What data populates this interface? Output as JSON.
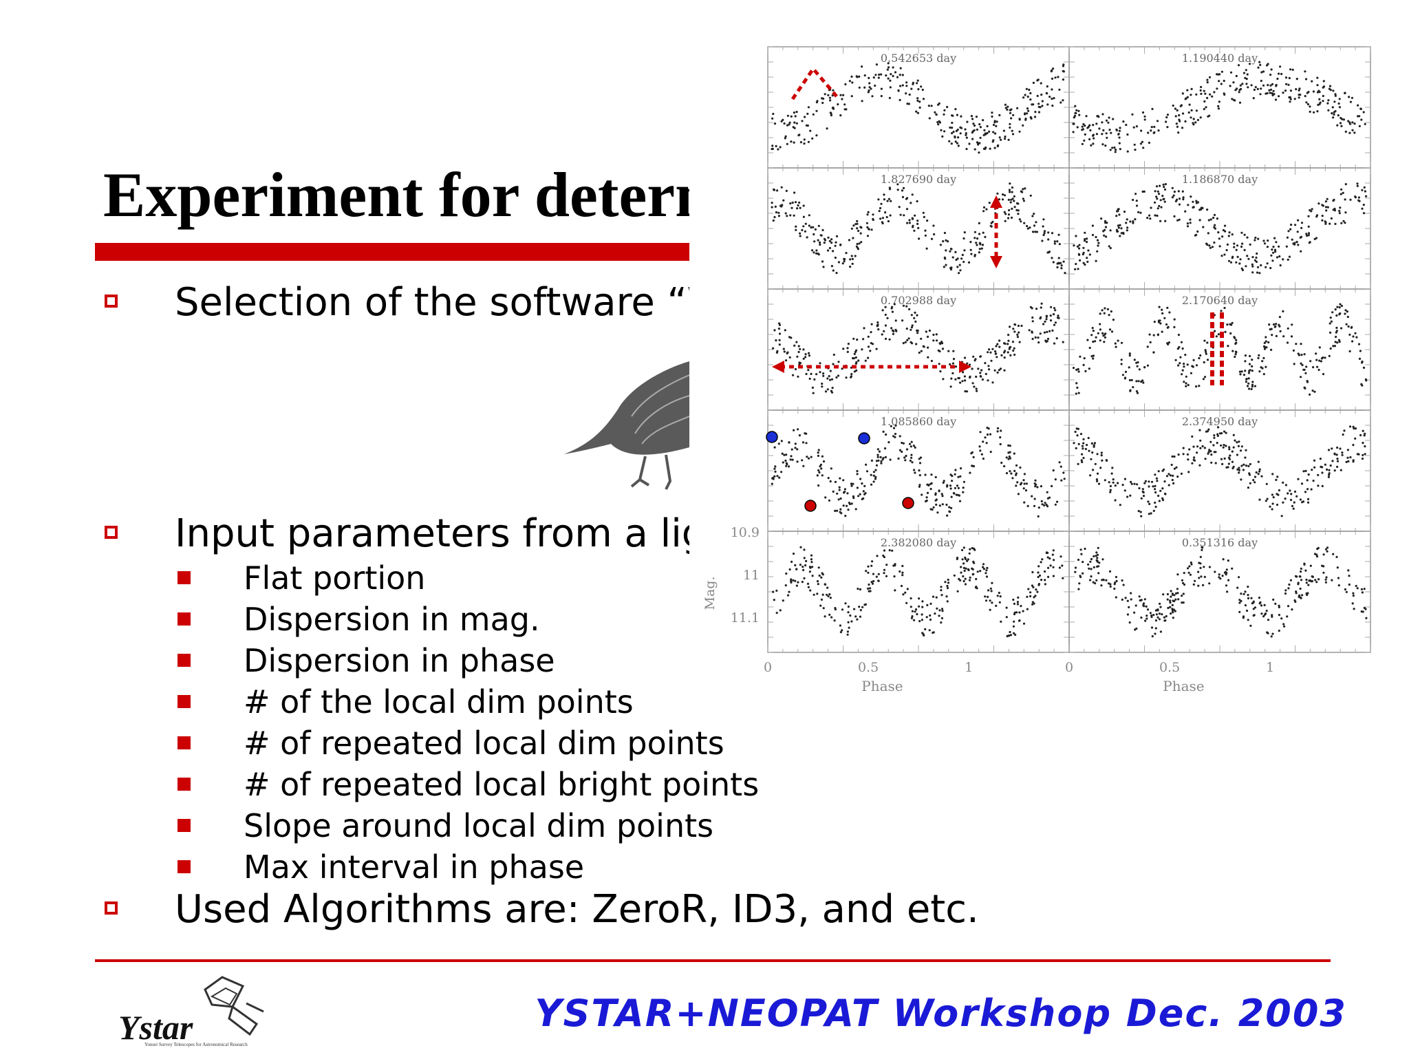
{
  "slide": {
    "title": "Experiment for determination of variable type",
    "bullets": [
      {
        "text": "Selection of the software “WEKA”"
      },
      {
        "text": "Input parameters from a light curve"
      },
      {
        "text": "Used Algorithms are: ZeroR, ID3, and etc."
      }
    ],
    "sub_bullets": [
      "Flat portion",
      "Dispersion in mag.",
      "Dispersion in phase",
      "# of the local dim points",
      "# of repeated local dim points",
      "# of repeated local bright points",
      "Slope around local dim points",
      "Max interval in phase"
    ],
    "footer": "YSTAR+NEOPAT Workshop Dec. 2003",
    "logo": {
      "word": "Ystar",
      "tagline": "Yonsei Survey Telescopes for Astronomical Research"
    },
    "colors": {
      "accent_red": "#cc0000",
      "footer_blue": "#1a1ad6"
    }
  },
  "chart_data": {
    "type": "scatter",
    "layout": "5 rows x 2 columns of phased light curves",
    "ylabel": "Mag.",
    "xlabel": "Phase",
    "x_ticks": [
      "0",
      "0.5",
      "1"
    ],
    "y_ticks": [
      "10.9",
      "11",
      "11.1"
    ],
    "panels": [
      {
        "label": "0.542653 day",
        "shape": "sinusoid",
        "annotation": "flat-portion-peak"
      },
      {
        "label": "1.190440 day",
        "shape": "sinusoid"
      },
      {
        "label": "1.827690 day",
        "shape": "sinusoid",
        "annotation": "mag-dispersion-arrow"
      },
      {
        "label": "1.186870 day",
        "shape": "sinusoid"
      },
      {
        "label": "0.702988 day",
        "shape": "sinusoid",
        "annotation": "phase-dispersion-arrow"
      },
      {
        "label": "2.170640 day",
        "shape": "sinusoid",
        "annotation": "dim-point-bars"
      },
      {
        "label": "1.085860 day",
        "shape": "sinusoid",
        "annotation": "local-dim-bright-points"
      },
      {
        "label": "2.374950 day",
        "shape": "sinusoid"
      },
      {
        "label": "2.382080 day",
        "shape": "sinusoid"
      },
      {
        "label": "0.351316 day",
        "shape": "sinusoid"
      }
    ]
  }
}
